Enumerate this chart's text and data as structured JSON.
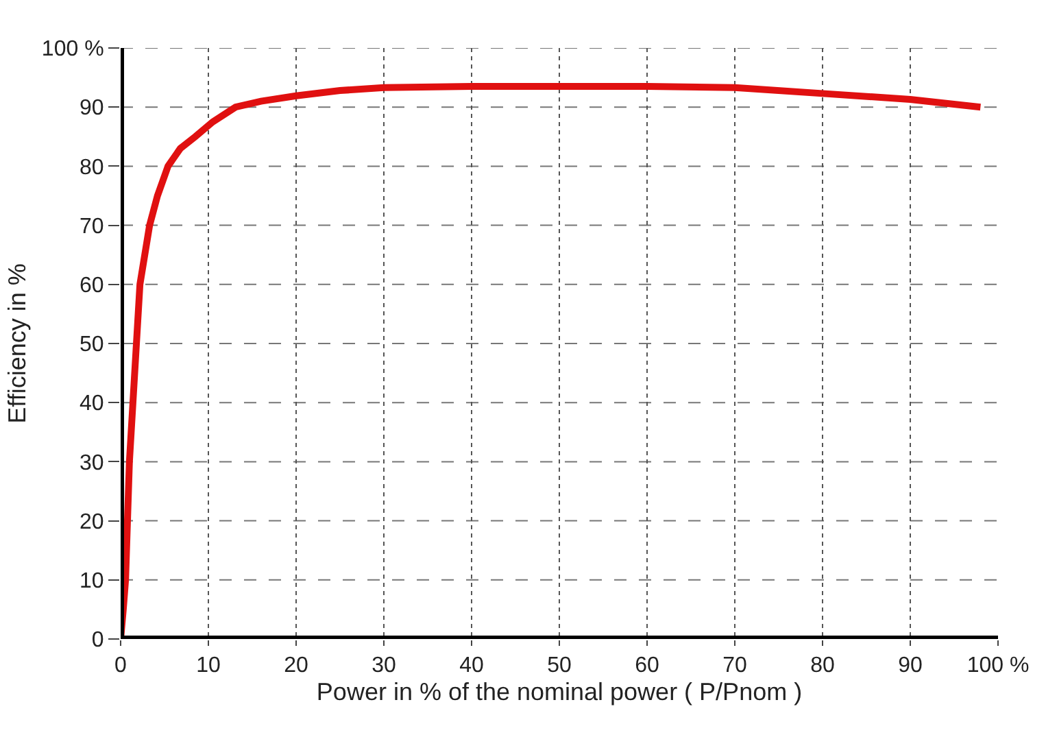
{
  "chart_data": {
    "type": "line",
    "xlabel": "Power in % of the nominal power ( P/Pnom )",
    "ylabel": "Efficiency in %",
    "x": [
      0,
      0.3,
      0.56,
      1.0,
      1.4,
      1.8,
      2.2,
      3.3,
      4.2,
      5.4,
      6.8,
      8.5,
      10.5,
      13.1,
      16,
      20,
      25,
      30,
      40,
      50,
      60,
      70,
      80,
      90,
      98
    ],
    "series": [
      {
        "color": "#e01010",
        "values": [
          0,
          5,
          10,
          30,
          40,
          50,
          60,
          70,
          75,
          80,
          83,
          85,
          87.5,
          90,
          91,
          91.9,
          92.8,
          93.3,
          93.5,
          93.5,
          93.5,
          93.3,
          92.3,
          91.3,
          90
        ]
      }
    ],
    "xlim": [
      0,
      100
    ],
    "ylim": [
      0,
      100
    ],
    "xticks": [
      0,
      10,
      20,
      30,
      40,
      50,
      60,
      70,
      80,
      90,
      {
        "value": 100,
        "label": "100 %"
      }
    ],
    "yticks": [
      0,
      10,
      20,
      30,
      40,
      50,
      60,
      70,
      80,
      90,
      {
        "value": 100,
        "label": "100 %"
      }
    ],
    "grid": true,
    "marker": "none",
    "line_style": "solid"
  }
}
